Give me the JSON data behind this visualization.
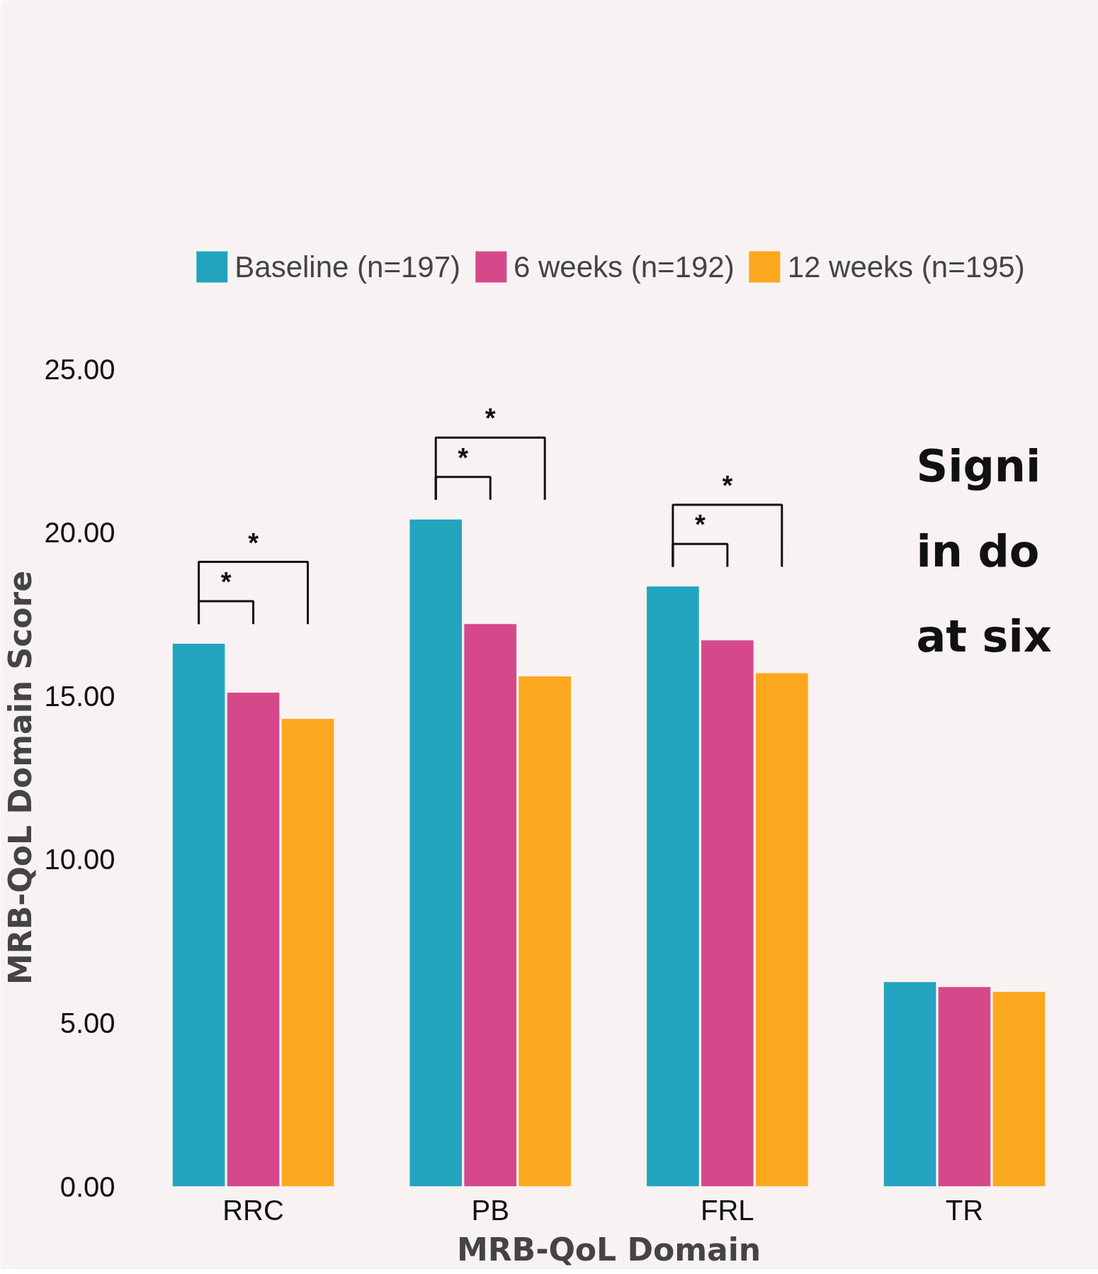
{
  "chart_data": {
    "type": "bar",
    "xlabel": "MRB-QoL Domain",
    "ylabel": "MRB-QoL Domain Score",
    "categories": [
      "RRC",
      "PB",
      "FRL",
      "TR"
    ],
    "series": [
      {
        "name": "Baseline (n=197)",
        "color": "#22a4bf",
        "values": [
          16.6,
          20.4,
          18.35,
          6.25
        ]
      },
      {
        "name": "6 weeks (n=192)",
        "color": "#d5498b",
        "values": [
          15.1,
          17.2,
          16.7,
          6.1
        ]
      },
      {
        "name": "12 weeks (n=195)",
        "color": "#fca81f",
        "values": [
          14.3,
          15.6,
          15.7,
          5.95
        ]
      }
    ],
    "ylim": [
      0,
      25
    ],
    "yticks": [
      {
        "value": 0,
        "label": "0.00"
      },
      {
        "value": 5,
        "label": "5.00"
      },
      {
        "value": 10,
        "label": "10.00"
      },
      {
        "value": 15,
        "label": "15.00"
      },
      {
        "value": 20,
        "label": "20.00"
      },
      {
        "value": 25,
        "label": "25.00"
      }
    ],
    "grid": false,
    "legend": "top",
    "title": "Signi\nin do\nat six",
    "annotations": [
      "*",
      "*",
      "*",
      "*",
      "*",
      "*"
    ]
  }
}
